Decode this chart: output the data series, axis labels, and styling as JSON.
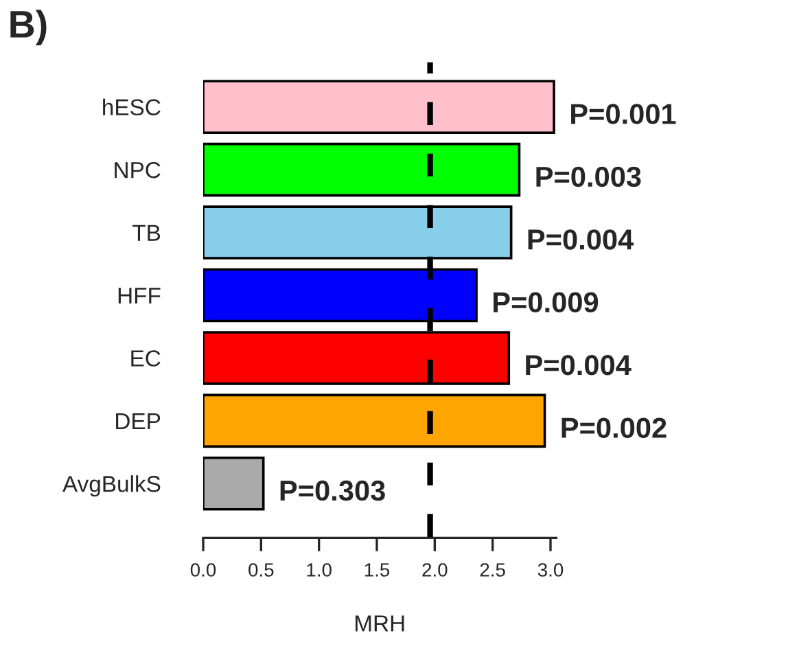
{
  "chart_data": {
    "type": "bar",
    "orientation": "horizontal",
    "title": "B)",
    "xlabel": "MRH",
    "categories": [
      "hESC",
      "NPC",
      "TB",
      "HFF",
      "EC",
      "DEP",
      "AvgBulkS"
    ],
    "values": [
      3.03,
      2.73,
      2.66,
      2.36,
      2.64,
      2.95,
      0.52
    ],
    "colors": [
      "#ffc0cb",
      "#00ff00",
      "#87ceeb",
      "#0000ff",
      "#ff0000",
      "#ffa500",
      "#aaaaaa"
    ],
    "xlim": [
      0,
      3.05
    ],
    "xticks": [
      {
        "value": 0,
        "label": "0.0"
      },
      {
        "value": 0.5,
        "label": "0.5"
      },
      {
        "value": 1,
        "label": "1.0"
      },
      {
        "value": 1.5,
        "label": "1.5"
      },
      {
        "value": 2,
        "label": "2.0"
      },
      {
        "value": 2.5,
        "label": "2.5"
      },
      {
        "value": 3,
        "label": "3.0"
      }
    ],
    "ref_lines": [
      {
        "axis": "x",
        "value": 1.96,
        "color": "#000000",
        "line_style": "dashed"
      }
    ],
    "annotations": [
      {
        "text": "P=0.001",
        "x": 3.03,
        "y": "hESC"
      },
      {
        "text": "P=0.003",
        "x": 2.73,
        "y": "NPC"
      },
      {
        "text": "P=0.004",
        "x": 2.66,
        "y": "TB"
      },
      {
        "text": "P=0.009",
        "x": 2.36,
        "y": "HFF"
      },
      {
        "text": "P=0.004",
        "x": 2.64,
        "y": "EC"
      },
      {
        "text": "P=0.002",
        "x": 2.95,
        "y": "DEP"
      },
      {
        "text": "P=0.303",
        "x": 0.52,
        "y": "AvgBulkS"
      }
    ],
    "grid": false
  }
}
